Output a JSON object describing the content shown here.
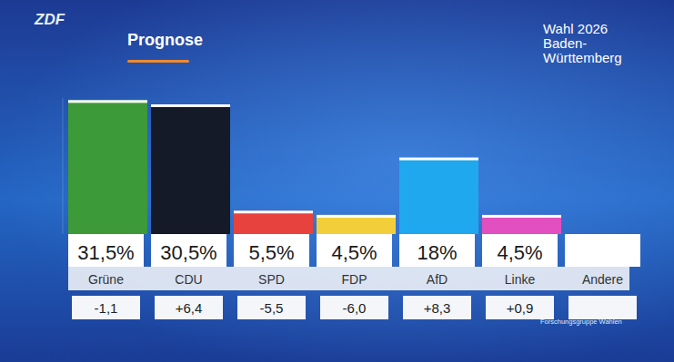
{
  "chart_data": {
    "type": "bar",
    "logo": "ZDF",
    "title": "Prognose",
    "subtitle": [
      "Wahl 2026",
      "Baden-",
      "Württemberg"
    ],
    "source": "Forschungsgruppe Wahlen",
    "categories": [
      "Grüne",
      "CDU",
      "SPD",
      "FDP",
      "AfD",
      "Linke",
      "Andere"
    ],
    "values": [
      31.5,
      30.5,
      5.5,
      4.5,
      18,
      4.5,
      null
    ],
    "value_labels": [
      "31,5%",
      "30,5%",
      "5,5%",
      "4,5%",
      "18%",
      "4,5%",
      null
    ],
    "colors": [
      "#3c9a38",
      "#151a28",
      "#e8423f",
      "#f2cf3a",
      "#1fa8ee",
      "#e24fbf",
      "#d9d9d9"
    ],
    "changes": [
      -1.1,
      6.4,
      -5.5,
      -6.0,
      8.3,
      0.9,
      null
    ],
    "change_labels": [
      "-1,1",
      "+6,4",
      "-5,5",
      "-6,0",
      "+8,3",
      "+0,9",
      null
    ],
    "ylim": [
      0,
      32
    ],
    "data_labels": true,
    "tick_labels": false,
    "grid": false
  }
}
